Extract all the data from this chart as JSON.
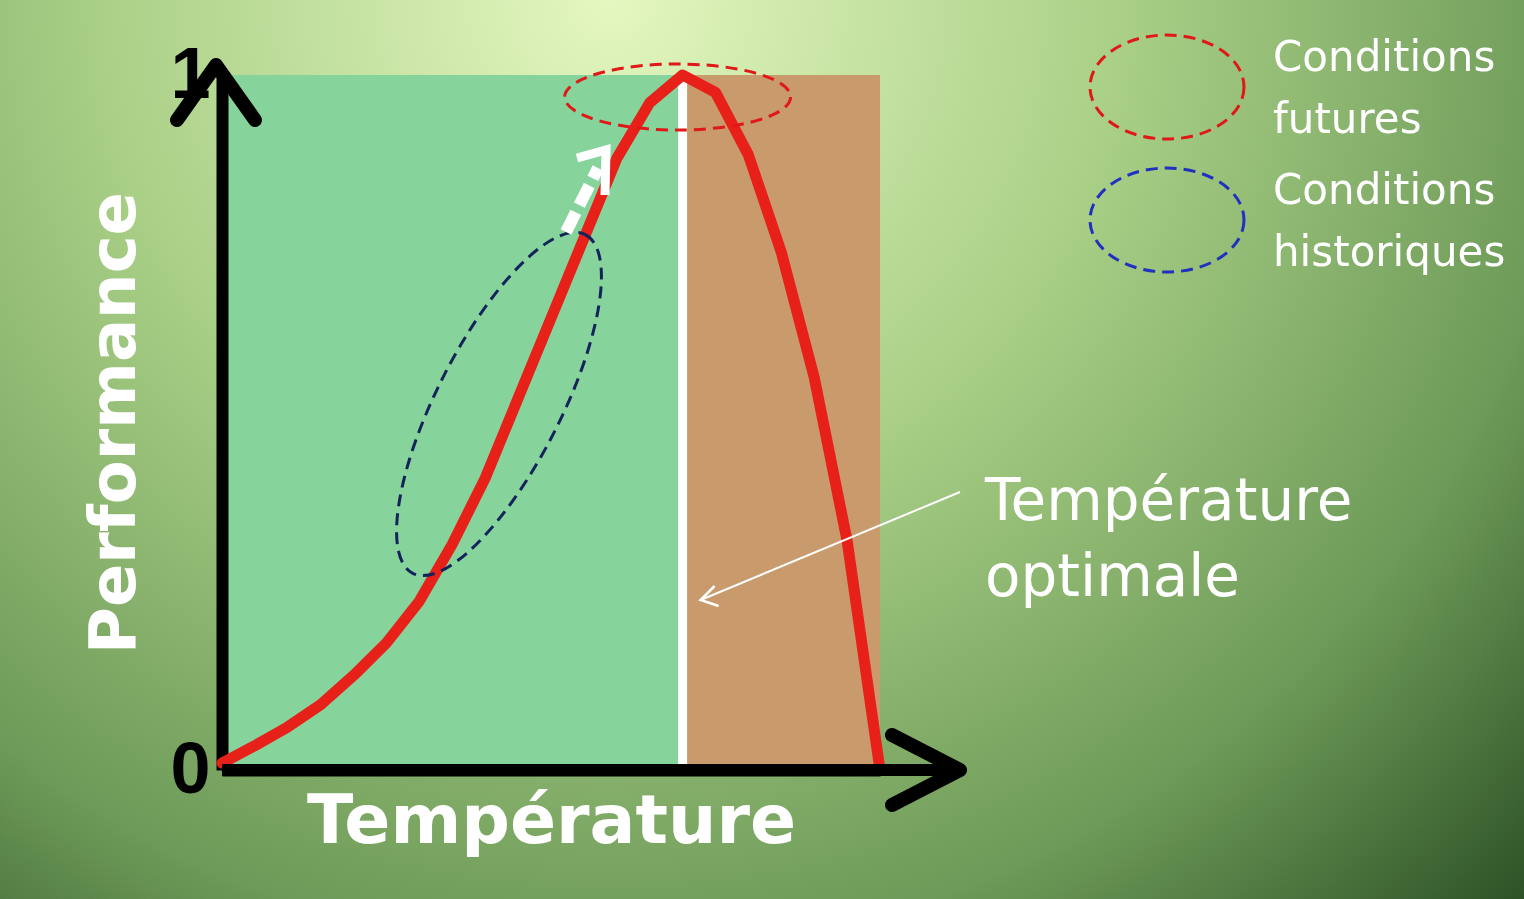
{
  "chart_data": {
    "type": "line",
    "xlabel": "Température",
    "ylabel": "Performance",
    "categories": [
      null,
      null,
      null,
      null,
      null,
      null,
      null,
      null,
      null,
      null,
      null,
      null,
      null,
      null,
      null,
      null,
      null,
      null,
      null,
      null,
      null
    ],
    "series": [
      {
        "color": "#e8201a",
        "values": [
          0.01,
          0.035,
          0.062,
          0.094,
          0.136,
          0.183,
          0.243,
          0.325,
          0.42,
          0.535,
          0.65,
          0.765,
          0.88,
          0.96,
          1.0,
          0.975,
          0.885,
          0.745,
          0.565,
          0.33,
          0
        ]
      }
    ],
    "ylim": [
      0,
      1
    ],
    "yticks": [
      0,
      1
    ],
    "tick_labels": "y",
    "annotations": [
      "Conditions futures",
      "Conditions historiques",
      "Température optimale"
    ]
  }
}
